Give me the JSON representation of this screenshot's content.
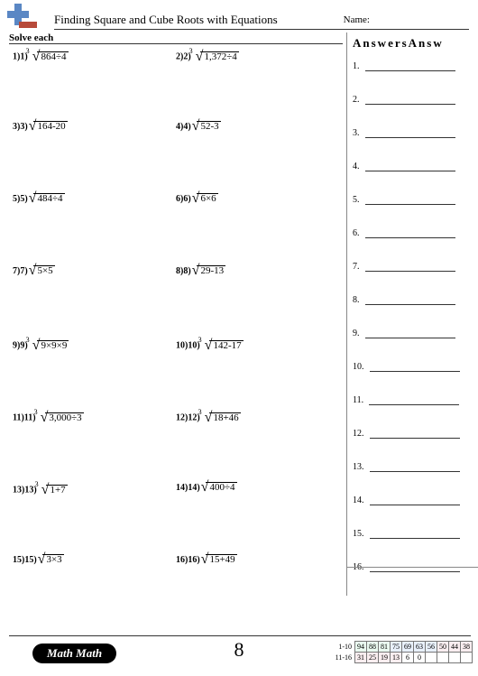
{
  "title": "Finding Square and Cube Roots with Equations",
  "name_label": "Name:",
  "instruction": "Solve each",
  "answers_title": "AnswersAnsw",
  "page_number": "8",
  "badge": "Math Math",
  "problems": [
    {
      "n": "1)1)",
      "idx": "3",
      "expr": "864÷4"
    },
    {
      "n": "2)2)",
      "idx": "3",
      "expr": "1,372÷4"
    },
    {
      "n": "3)3)",
      "idx": "",
      "expr": "164-20"
    },
    {
      "n": "4)4)",
      "idx": "",
      "expr": "52-3"
    },
    {
      "n": "5)5)",
      "idx": "",
      "expr": "484÷4"
    },
    {
      "n": "6)6)",
      "idx": "",
      "expr": "6×6"
    },
    {
      "n": "7)7)",
      "idx": "",
      "expr": "5×5"
    },
    {
      "n": "8)8)",
      "idx": "",
      "expr": "29-13"
    },
    {
      "n": "9)9)",
      "idx": "3",
      "expr": "9×9×9"
    },
    {
      "n": "10)10)",
      "idx": "3",
      "expr": "142-17"
    },
    {
      "n": "11)11)",
      "idx": "3",
      "expr": "3,000÷3"
    },
    {
      "n": "12)12)",
      "idx": "3",
      "expr": "18+46"
    },
    {
      "n": "13)13)",
      "idx": "3",
      "expr": "1+7"
    },
    {
      "n": "14)14)",
      "idx": "",
      "expr": "400÷4"
    },
    {
      "n": "15)15)",
      "idx": "",
      "expr": "3×3"
    },
    {
      "n": "16)16)",
      "idx": "",
      "expr": "15+49"
    }
  ],
  "answer_rows": [
    "1.",
    "2.",
    "3.",
    "4.",
    "5.",
    "6.",
    "7.",
    "8.",
    "9.",
    "10.",
    "11.",
    "12.",
    "13.",
    "14.",
    "15.",
    "16."
  ],
  "score": {
    "r1_label": "1-10",
    "r2_label": "11-16",
    "r1": [
      "94",
      "88",
      "81",
      "75",
      "69",
      "63",
      "56",
      "50",
      "44",
      "38"
    ],
    "r2": [
      "31",
      "25",
      "19",
      "13",
      "6",
      "0"
    ]
  },
  "colors": {
    "logo_blue": "#5a87c4",
    "logo_red": "#b74a3a"
  }
}
